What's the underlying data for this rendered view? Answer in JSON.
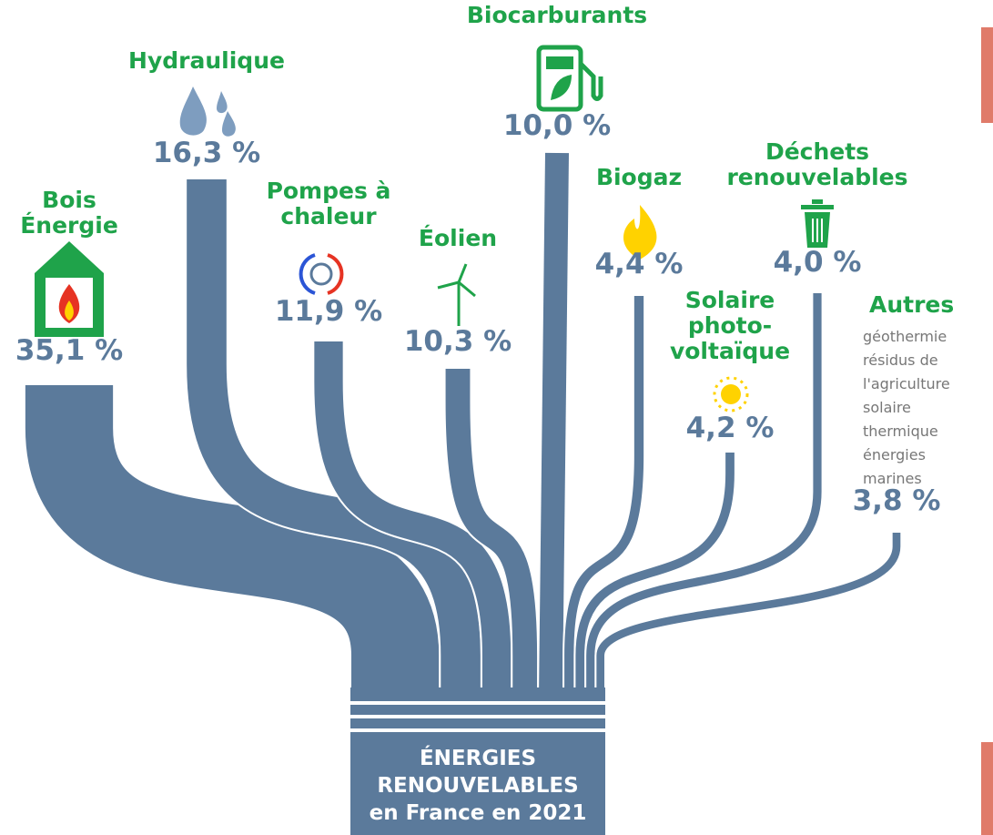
{
  "chart_data": {
    "type": "sankey",
    "title": [
      "ÉNERGIES",
      "RENOUVELABLES",
      "en France en 2021"
    ],
    "categories": [
      [
        "Bois",
        "Énergie"
      ],
      [
        "Hydraulique"
      ],
      [
        "Pompes à",
        "chaleur"
      ],
      [
        "Éolien"
      ],
      [
        "Biocarburants"
      ],
      [
        "Biogaz"
      ],
      [
        "Solaire",
        "photo-",
        "voltaïque"
      ],
      [
        "Déchets",
        "renouvelables"
      ],
      [
        "Autres"
      ]
    ],
    "values": [
      35.1,
      16.3,
      11.9,
      10.3,
      10.0,
      4.4,
      4.2,
      4.0,
      3.8
    ],
    "value_labels": [
      "35,1 %",
      "16,3 %",
      "11,9 %",
      "10,3 %",
      "10,0 %",
      "4,4 %",
      "4,2 %",
      "4,0 %",
      "3,8 %"
    ],
    "annotations": [
      "géothermie",
      "résidus de",
      "l'agriculture",
      "solaire",
      "thermique",
      "énergies",
      "marines"
    ],
    "color": "#5b7a9b",
    "label_color": "#1fa34a"
  }
}
